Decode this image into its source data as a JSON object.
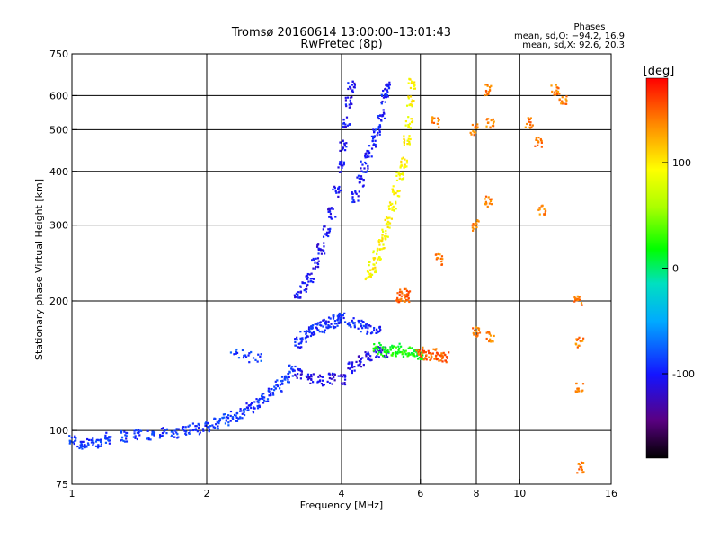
{
  "chart_data": {
    "type": "scatter",
    "title": "Tromsø 20160614 13:00:00–13:01:43",
    "subtitle": "RwPretec (8p)",
    "xlabel": "Frequency [MHz]",
    "ylabel": "Stationary phase Virtual Height [km]",
    "x_scale": "log2",
    "y_scale": "log",
    "xlim": [
      1,
      16
    ],
    "ylim": [
      75,
      750
    ],
    "x_ticks": [
      1,
      2,
      4,
      6,
      8,
      10,
      16
    ],
    "y_ticks": [
      75,
      100,
      200,
      300,
      400,
      500,
      600,
      750
    ],
    "grid": true,
    "phase_info": {
      "heading": "Phases",
      "line_o": "mean, sd,O: −94.2, 16.9",
      "line_x": "mean, sd,X:  92.6, 20.3"
    },
    "colorbar": {
      "label": "[deg]",
      "range": [
        -180,
        180
      ],
      "ticks": [
        100,
        0,
        -100
      ],
      "placement": "right"
    },
    "traces": [
      {
        "role": "low-frequency E/F1 rise",
        "phase": -90,
        "points": [
          [
            1.0,
            95
          ],
          [
            1.05,
            93
          ],
          [
            1.1,
            93
          ],
          [
            1.15,
            94
          ],
          [
            1.2,
            96
          ],
          [
            1.3,
            97
          ],
          [
            1.4,
            98
          ],
          [
            1.5,
            98
          ],
          [
            1.6,
            99
          ],
          [
            1.7,
            99
          ],
          [
            1.8,
            100
          ],
          [
            1.9,
            101
          ],
          [
            2.0,
            102
          ],
          [
            2.1,
            104
          ],
          [
            2.2,
            106
          ],
          [
            2.3,
            108
          ],
          [
            2.4,
            110
          ],
          [
            2.5,
            113
          ],
          [
            2.6,
            116
          ],
          [
            2.7,
            119
          ],
          [
            2.8,
            123
          ],
          [
            2.9,
            127
          ],
          [
            3.0,
            132
          ],
          [
            3.1,
            138
          ]
        ]
      },
      {
        "role": "isolated trace ~2.4 MHz",
        "phase": -85,
        "points": [
          [
            2.3,
            153
          ],
          [
            2.4,
            150
          ],
          [
            2.5,
            148
          ],
          [
            2.6,
            147
          ]
        ]
      },
      {
        "role": "O-mode F2 trace",
        "phase": -105,
        "points": [
          [
            3.2,
            205
          ],
          [
            3.3,
            215
          ],
          [
            3.4,
            228
          ],
          [
            3.5,
            245
          ],
          [
            3.6,
            265
          ],
          [
            3.7,
            290
          ],
          [
            3.8,
            320
          ],
          [
            3.9,
            360
          ],
          [
            4.0,
            410
          ],
          [
            4.05,
            460
          ],
          [
            4.1,
            520
          ],
          [
            4.15,
            580
          ],
          [
            4.2,
            630
          ]
        ]
      },
      {
        "role": "O-mode upper branch",
        "phase": -100,
        "points": [
          [
            4.3,
            350
          ],
          [
            4.4,
            380
          ],
          [
            4.5,
            410
          ],
          [
            4.6,
            440
          ],
          [
            4.7,
            470
          ],
          [
            4.8,
            500
          ],
          [
            4.9,
            540
          ],
          [
            5.0,
            590
          ],
          [
            5.05,
            630
          ]
        ]
      },
      {
        "role": "F1 cusp cluster",
        "phase": -95,
        "points": [
          [
            3.2,
            160
          ],
          [
            3.3,
            165
          ],
          [
            3.4,
            170
          ],
          [
            3.5,
            172
          ],
          [
            3.6,
            174
          ],
          [
            3.7,
            176
          ],
          [
            3.8,
            178
          ],
          [
            3.9,
            180
          ],
          [
            4.0,
            182
          ],
          [
            4.2,
            178
          ],
          [
            4.4,
            175
          ],
          [
            4.6,
            172
          ],
          [
            4.8,
            170
          ]
        ]
      },
      {
        "role": "lower oblique scatter",
        "phase": -110,
        "points": [
          [
            3.2,
            135
          ],
          [
            3.4,
            132
          ],
          [
            3.6,
            131
          ],
          [
            3.8,
            132
          ],
          [
            4.0,
            131
          ],
          [
            4.2,
            140
          ],
          [
            4.4,
            145
          ],
          [
            4.6,
            150
          ],
          [
            4.8,
            152
          ],
          [
            5.0,
            152
          ]
        ]
      },
      {
        "role": "X-mode F2 trace",
        "phase": 95,
        "points": [
          [
            4.6,
            230
          ],
          [
            4.7,
            240
          ],
          [
            4.8,
            255
          ],
          [
            4.9,
            270
          ],
          [
            5.0,
            285
          ],
          [
            5.1,
            305
          ],
          [
            5.2,
            330
          ],
          [
            5.3,
            360
          ],
          [
            5.4,
            390
          ],
          [
            5.5,
            420
          ],
          [
            5.6,
            470
          ],
          [
            5.65,
            520
          ],
          [
            5.7,
            580
          ],
          [
            5.75,
            640
          ]
        ]
      },
      {
        "role": "X-mode F1 segment",
        "phase": 20,
        "points": [
          [
            4.8,
            155
          ],
          [
            5.0,
            152
          ],
          [
            5.2,
            153
          ],
          [
            5.4,
            155
          ],
          [
            5.6,
            152
          ],
          [
            5.8,
            152
          ],
          [
            6.0,
            150
          ]
        ]
      },
      {
        "role": "X-mode F1 high",
        "phase": 150,
        "points": [
          [
            5.4,
            205
          ],
          [
            5.5,
            207
          ],
          [
            5.6,
            205
          ],
          [
            6.0,
            152
          ],
          [
            6.2,
            150
          ],
          [
            6.4,
            151
          ],
          [
            6.6,
            149
          ],
          [
            6.8,
            148
          ]
        ]
      },
      {
        "role": "isolated high-frequency echoes",
        "phase": 140,
        "points": [
          [
            6.5,
            520
          ],
          [
            7.9,
            500
          ],
          [
            8.0,
            300
          ],
          [
            8.5,
            620
          ],
          [
            8.6,
            520
          ],
          [
            8.5,
            340
          ],
          [
            8.6,
            165
          ],
          [
            10.5,
            520
          ],
          [
            11.0,
            470
          ],
          [
            11.2,
            325
          ],
          [
            12.0,
            620
          ],
          [
            12.5,
            590
          ],
          [
            13.5,
            200
          ],
          [
            13.6,
            160
          ],
          [
            13.6,
            125
          ],
          [
            13.7,
            82
          ],
          [
            6.6,
            250
          ],
          [
            8.0,
            170
          ]
        ]
      }
    ]
  }
}
